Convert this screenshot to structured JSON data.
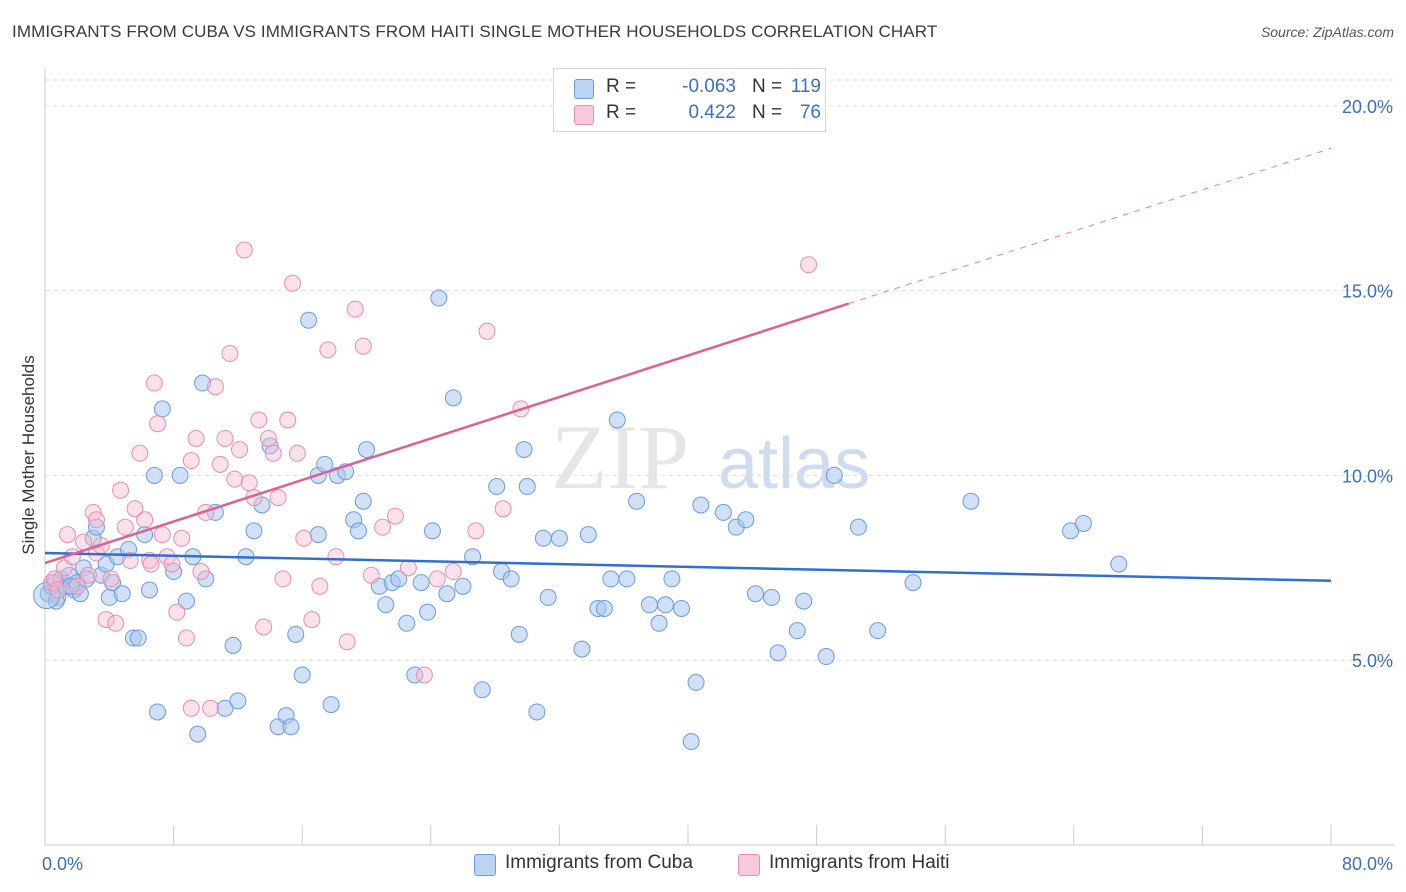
{
  "title": "IMMIGRANTS FROM CUBA VS IMMIGRANTS FROM HAITI SINGLE MOTHER HOUSEHOLDS CORRELATION CHART",
  "source": "Source: ZipAtlas.com",
  "watermark": {
    "zip": "ZIP",
    "atlas": "atlas"
  },
  "colors": {
    "cuba_fill": "#a9c6ef",
    "cuba_stroke": "#6b9be0",
    "cuba_line": "#2f6fce",
    "haiti_fill": "#f6bcd0",
    "haiti_stroke": "#e98db0",
    "haiti_line": "#e0608f",
    "axis_label": "#3b6fc4",
    "grid": "#dddddd"
  },
  "legend": {
    "rows": [
      {
        "r_label": "R =",
        "r_value": "-0.063",
        "n_label": "N =",
        "n_value": "119"
      },
      {
        "r_label": "R =",
        "r_value": "0.422",
        "n_label": "N =",
        "n_value": "76"
      }
    ]
  },
  "bottom_legend": {
    "cuba": "Immigrants from Cuba",
    "haiti": "Immigrants from Haiti"
  },
  "chart_data": {
    "type": "scatter",
    "title": "IMMIGRANTS FROM CUBA VS IMMIGRANTS FROM HAITI SINGLE MOTHER HOUSEHOLDS CORRELATION CHART",
    "xlabel": "",
    "ylabel": "Single Mother Households",
    "xlim": [
      0,
      80
    ],
    "ylim": [
      0,
      20.7
    ],
    "x_tick_labels": [
      "0.0%",
      "80.0%"
    ],
    "y_ticks": [
      5,
      10,
      15,
      20
    ],
    "y_tick_labels": [
      "5.0%",
      "10.0%",
      "15.0%",
      "20.0%"
    ],
    "grid": true,
    "series": [
      {
        "name": "Immigrants from Cuba",
        "r": -0.063,
        "n": 119,
        "trend": {
          "x0": 0,
          "y0": 7.9,
          "x1": 80,
          "y1": 7.15
        },
        "points": [
          [
            0.2,
            6.8
          ],
          [
            0.4,
            7.0
          ],
          [
            0.6,
            7.1
          ],
          [
            0.8,
            6.7
          ],
          [
            1.0,
            7.2
          ],
          [
            1.3,
            7.0
          ],
          [
            1.5,
            7.3
          ],
          [
            1.8,
            6.9
          ],
          [
            2.0,
            7.1
          ],
          [
            2.2,
            6.8
          ],
          [
            2.4,
            7.5
          ],
          [
            2.6,
            7.2
          ],
          [
            3.0,
            8.3
          ],
          [
            3.2,
            8.6
          ],
          [
            3.5,
            7.3
          ],
          [
            3.8,
            7.6
          ],
          [
            4.0,
            6.7
          ],
          [
            4.2,
            7.1
          ],
          [
            4.5,
            7.8
          ],
          [
            4.8,
            6.8
          ],
          [
            5.2,
            8.0
          ],
          [
            5.5,
            5.6
          ],
          [
            5.8,
            5.6
          ],
          [
            6.2,
            8.4
          ],
          [
            6.5,
            6.9
          ],
          [
            6.8,
            10.0
          ],
          [
            7.0,
            3.6
          ],
          [
            7.3,
            11.8
          ],
          [
            8.0,
            7.4
          ],
          [
            8.4,
            10.0
          ],
          [
            8.8,
            6.6
          ],
          [
            9.2,
            7.8
          ],
          [
            9.5,
            3.0
          ],
          [
            10.0,
            7.2
          ],
          [
            10.6,
            9.0
          ],
          [
            11.2,
            3.7
          ],
          [
            11.7,
            5.4
          ],
          [
            12.0,
            3.9
          ],
          [
            12.5,
            7.8
          ],
          [
            13.0,
            8.5
          ],
          [
            13.5,
            9.2
          ],
          [
            14.0,
            10.8
          ],
          [
            14.5,
            3.2
          ],
          [
            15.0,
            3.5
          ],
          [
            15.3,
            3.2
          ],
          [
            15.6,
            5.7
          ],
          [
            16.0,
            4.6
          ],
          [
            16.4,
            14.2
          ],
          [
            17.0,
            10.0
          ],
          [
            17.4,
            10.3
          ],
          [
            17.8,
            3.8
          ],
          [
            18.2,
            10.0
          ],
          [
            18.7,
            10.1
          ],
          [
            19.2,
            8.8
          ],
          [
            19.5,
            8.5
          ],
          [
            19.8,
            9.3
          ],
          [
            20.0,
            10.7
          ],
          [
            20.8,
            7.0
          ],
          [
            21.2,
            6.5
          ],
          [
            21.6,
            7.1
          ],
          [
            22.0,
            7.2
          ],
          [
            22.5,
            6.0
          ],
          [
            23.0,
            4.6
          ],
          [
            23.4,
            7.1
          ],
          [
            23.8,
            6.3
          ],
          [
            24.1,
            8.5
          ],
          [
            24.5,
            14.8
          ],
          [
            25.0,
            6.8
          ],
          [
            25.4,
            12.1
          ],
          [
            26.0,
            7.0
          ],
          [
            26.6,
            7.8
          ],
          [
            27.2,
            4.2
          ],
          [
            28.1,
            9.7
          ],
          [
            28.4,
            7.4
          ],
          [
            29.0,
            7.2
          ],
          [
            29.5,
            5.7
          ],
          [
            29.8,
            10.7
          ],
          [
            30.0,
            9.7
          ],
          [
            30.6,
            3.6
          ],
          [
            31.0,
            8.3
          ],
          [
            31.3,
            6.7
          ],
          [
            32.0,
            8.3
          ],
          [
            33.4,
            5.3
          ],
          [
            33.8,
            8.4
          ],
          [
            34.4,
            6.4
          ],
          [
            34.8,
            6.4
          ],
          [
            35.2,
            7.2
          ],
          [
            35.6,
            11.5
          ],
          [
            36.2,
            7.2
          ],
          [
            36.8,
            9.3
          ],
          [
            37.6,
            6.5
          ],
          [
            38.2,
            6.0
          ],
          [
            38.6,
            6.5
          ],
          [
            39.0,
            7.2
          ],
          [
            39.6,
            6.4
          ],
          [
            40.2,
            2.8
          ],
          [
            40.5,
            4.4
          ],
          [
            40.8,
            9.2
          ],
          [
            42.2,
            9.0
          ],
          [
            43.0,
            8.6
          ],
          [
            43.6,
            8.8
          ],
          [
            44.2,
            6.8
          ],
          [
            45.2,
            6.7
          ],
          [
            45.6,
            5.2
          ],
          [
            46.8,
            5.8
          ],
          [
            47.2,
            6.6
          ],
          [
            48.6,
            5.1
          ],
          [
            49.1,
            10.0
          ],
          [
            50.6,
            8.6
          ],
          [
            51.8,
            5.8
          ],
          [
            54.0,
            7.1
          ],
          [
            57.6,
            9.3
          ],
          [
            63.8,
            8.5
          ],
          [
            64.6,
            8.7
          ],
          [
            66.8,
            7.6
          ],
          [
            0.7,
            6.6
          ],
          [
            1.6,
            7.0
          ],
          [
            9.8,
            12.5
          ],
          [
            17.0,
            8.4
          ]
        ]
      },
      {
        "name": "Immigrants from Haiti",
        "r": 0.422,
        "n": 76,
        "trend": {
          "x0": 0,
          "y0": 7.63,
          "x1": 50,
          "y1": 14.65,
          "dashed_to": {
            "x": 80,
            "y": 18.85
          }
        },
        "points": [
          [
            0.4,
            7.1
          ],
          [
            0.6,
            7.2
          ],
          [
            0.8,
            6.9
          ],
          [
            1.2,
            7.5
          ],
          [
            1.4,
            8.4
          ],
          [
            1.7,
            7.8
          ],
          [
            2.0,
            7.0
          ],
          [
            2.4,
            8.2
          ],
          [
            2.7,
            7.3
          ],
          [
            3.0,
            9.0
          ],
          [
            3.2,
            7.9
          ],
          [
            3.5,
            8.1
          ],
          [
            3.8,
            6.1
          ],
          [
            4.1,
            7.2
          ],
          [
            4.4,
            6.0
          ],
          [
            4.7,
            9.6
          ],
          [
            5.0,
            8.6
          ],
          [
            5.3,
            7.7
          ],
          [
            5.6,
            9.1
          ],
          [
            5.9,
            10.6
          ],
          [
            6.2,
            8.8
          ],
          [
            6.5,
            7.7
          ],
          [
            6.8,
            12.5
          ],
          [
            7.0,
            11.4
          ],
          [
            7.3,
            8.4
          ],
          [
            7.6,
            7.8
          ],
          [
            7.9,
            7.6
          ],
          [
            8.2,
            6.3
          ],
          [
            8.5,
            8.3
          ],
          [
            8.8,
            5.6
          ],
          [
            9.1,
            3.7
          ],
          [
            9.4,
            11.0
          ],
          [
            9.7,
            7.4
          ],
          [
            10.0,
            9.0
          ],
          [
            10.3,
            3.7
          ],
          [
            10.6,
            12.4
          ],
          [
            10.9,
            10.3
          ],
          [
            11.2,
            11.0
          ],
          [
            11.5,
            13.3
          ],
          [
            11.8,
            9.9
          ],
          [
            12.1,
            10.7
          ],
          [
            12.4,
            16.1
          ],
          [
            12.7,
            9.8
          ],
          [
            13.0,
            9.4
          ],
          [
            13.3,
            11.5
          ],
          [
            13.6,
            5.9
          ],
          [
            13.9,
            11.0
          ],
          [
            14.2,
            10.6
          ],
          [
            14.5,
            9.4
          ],
          [
            14.8,
            7.2
          ],
          [
            15.1,
            11.5
          ],
          [
            15.4,
            15.2
          ],
          [
            15.7,
            10.6
          ],
          [
            16.1,
            8.3
          ],
          [
            16.6,
            6.1
          ],
          [
            17.1,
            7.0
          ],
          [
            17.6,
            13.4
          ],
          [
            18.1,
            7.8
          ],
          [
            18.8,
            5.5
          ],
          [
            19.3,
            14.5
          ],
          [
            19.8,
            13.5
          ],
          [
            20.3,
            7.3
          ],
          [
            21.0,
            8.6
          ],
          [
            21.8,
            8.9
          ],
          [
            22.6,
            7.5
          ],
          [
            23.6,
            4.6
          ],
          [
            24.4,
            7.2
          ],
          [
            25.4,
            7.4
          ],
          [
            26.8,
            8.5
          ],
          [
            27.5,
            13.9
          ],
          [
            28.5,
            9.1
          ],
          [
            29.6,
            11.8
          ],
          [
            47.5,
            15.7
          ],
          [
            9.1,
            10.4
          ],
          [
            3.2,
            8.8
          ],
          [
            6.6,
            7.6
          ]
        ]
      }
    ]
  }
}
